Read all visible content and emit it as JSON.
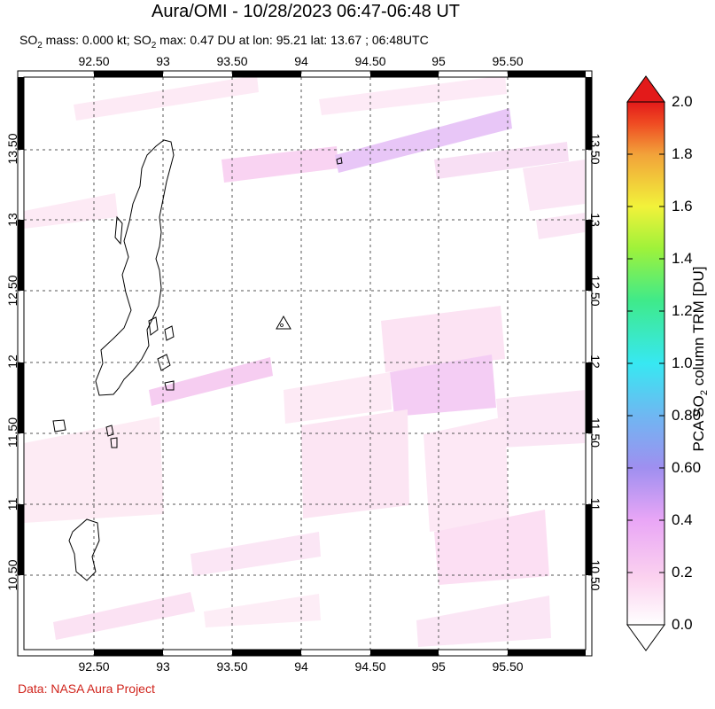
{
  "header": {
    "title": "Aura/OMI - 10/28/2023 06:47-06:48 UT",
    "subtitle_prefix": "SO",
    "subtitle_sub": "2",
    "subtitle_mid": " mass: 0.000 kt; SO",
    "subtitle_sub2": "2",
    "subtitle_rest": " max: 0.47 DU at lon: 95.21 lat: 13.67 ; 06:48UTC"
  },
  "map": {
    "lon_labels": [
      "92.50",
      "93",
      "93.50",
      "94",
      "94.50",
      "95",
      "95.50"
    ],
    "lat_labels": [
      "13.50",
      "13",
      "12.50",
      "12",
      "11.50",
      "11",
      "10.50"
    ],
    "volcano_marker": "triangle",
    "grid": "dashed"
  },
  "colorbar": {
    "ticks": [
      "2.0",
      "1.8",
      "1.6",
      "1.4",
      "1.2",
      "1.0",
      "0.80",
      "0.60",
      "0.4",
      "0.2",
      "0.0"
    ],
    "label_prefix": "PCA SO",
    "label_sub": "2",
    "label_rest": " column TRM [DU]",
    "colors": [
      "#ffffff",
      "#fbd2ef",
      "#e9a6f6",
      "#9f8ff0",
      "#6fb7f2",
      "#37e8f2",
      "#3fea8a",
      "#9ff23a",
      "#f2f23a",
      "#f2a23a",
      "#ef4a22",
      "#e31a1a"
    ]
  },
  "footer": {
    "credit": "Data: NASA Aura Project"
  }
}
